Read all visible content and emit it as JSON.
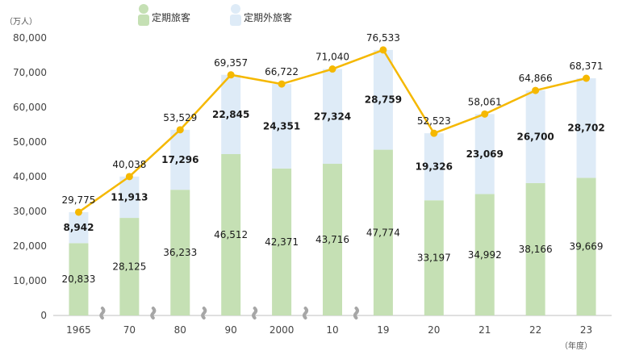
{
  "chart_data": {
    "type": "bar",
    "stacked": true,
    "unit_label": "（万人）",
    "x_unit_label": "（年度）",
    "categories": [
      "1965",
      "70",
      "80",
      "90",
      "2000",
      "10",
      "19",
      "20",
      "21",
      "22",
      "23"
    ],
    "axis_breaks_after_index": [
      0,
      1,
      2,
      3,
      4,
      5
    ],
    "ylim": [
      0,
      80000
    ],
    "yticks": [
      "0",
      "10,000",
      "20,000",
      "30,000",
      "40,000",
      "50,000",
      "60,000",
      "70,000",
      "80,000"
    ],
    "ytick_values": [
      0,
      10000,
      20000,
      30000,
      40000,
      50000,
      60000,
      70000,
      80000
    ],
    "series": [
      {
        "name": "定期旅客",
        "color": "#c5e0b4",
        "values": [
          20833,
          28125,
          36233,
          46512,
          42371,
          43716,
          47774,
          33197,
          34992,
          38166,
          39669
        ],
        "labels": [
          "20,833",
          "28,125",
          "36,233",
          "46,512",
          "42,371",
          "43,716",
          "47,774",
          "33,197",
          "34,992",
          "38,166",
          "39,669"
        ]
      },
      {
        "name": "定期外旅客",
        "color": "#deebf7",
        "values": [
          8942,
          11913,
          17296,
          22845,
          24351,
          27324,
          28759,
          19326,
          23069,
          26700,
          28702
        ],
        "labels": [
          "8,942",
          "11,913",
          "17,296",
          "22,845",
          "24,351",
          "27,324",
          "28,759",
          "19,326",
          "23,069",
          "26,700",
          "28,702"
        ]
      }
    ],
    "total": {
      "type": "line",
      "color": "#f5b800",
      "values": [
        29775,
        40038,
        53529,
        69357,
        66722,
        71040,
        76533,
        52523,
        58061,
        64866,
        68371
      ],
      "labels": [
        "29,775",
        "40,038",
        "53,529",
        "69,357",
        "66,722",
        "71,040",
        "76,533",
        "52,523",
        "58,061",
        "64,866",
        "68,371"
      ]
    },
    "legend_position": "top-left",
    "grid": false
  }
}
